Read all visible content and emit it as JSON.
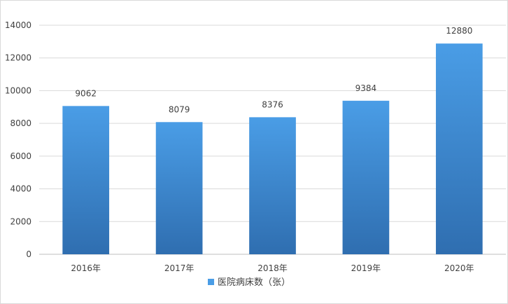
{
  "chart_data": {
    "type": "bar",
    "categories": [
      "2016年",
      "2017年",
      "2018年",
      "2019年",
      "2020年"
    ],
    "series": [
      {
        "name": "医院病床数（张）",
        "values": [
          9062,
          8079,
          8376,
          9384,
          12880
        ],
        "color": "#4a96dc"
      }
    ],
    "ylim": [
      0,
      14000
    ],
    "yticks": [
      "0",
      "2000",
      "4000",
      "6000",
      "8000",
      "10000",
      "12000",
      "14000"
    ],
    "data_labels": [
      "9062",
      "8079",
      "8376",
      "9384",
      "12880"
    ],
    "grid": true,
    "legend": "bottom"
  },
  "colors": {
    "bar_top": "#4a9de6",
    "bar_bottom": "#2f6eb0",
    "grid": "#d9d9d9",
    "axis": "#bfbfbf",
    "text": "#404040"
  }
}
